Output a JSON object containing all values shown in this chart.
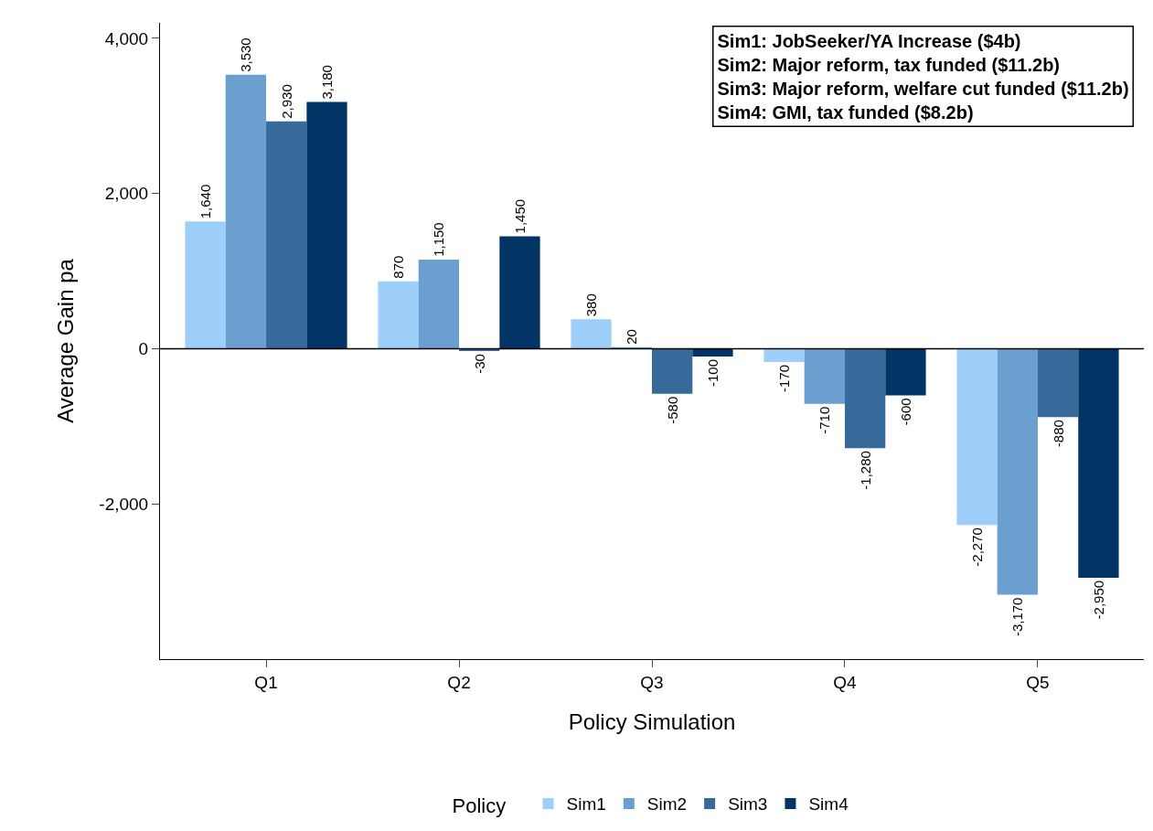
{
  "chart_data": {
    "type": "bar",
    "xlabel": "Policy Simulation",
    "ylabel": "Average Gain pa",
    "legend_title": "Policy",
    "categories": [
      "Q1",
      "Q2",
      "Q3",
      "Q4",
      "Q5"
    ],
    "series": [
      {
        "name": "Sim1",
        "color": "#9ecffb",
        "values": [
          1640,
          870,
          380,
          -170,
          -2270
        ],
        "value_labels": [
          "1,640",
          "870",
          "380",
          "-170",
          "-2,270"
        ]
      },
      {
        "name": "Sim2",
        "color": "#6a9fd0",
        "values": [
          3530,
          1150,
          20,
          -710,
          -3170
        ],
        "value_labels": [
          "3,530",
          "1,150",
          "20",
          "-710",
          "-3,170"
        ]
      },
      {
        "name": "Sim3",
        "color": "#356a9b",
        "values": [
          2930,
          -30,
          -580,
          -1280,
          -880
        ],
        "value_labels": [
          "2,930",
          "-30",
          "-580",
          "-1,280",
          "-880"
        ]
      },
      {
        "name": "Sim4",
        "color": "#033466",
        "values": [
          3180,
          1450,
          -100,
          -600,
          -2950
        ],
        "value_labels": [
          "3,180",
          "1,450",
          "-100",
          "-600",
          "-2,950"
        ]
      }
    ],
    "ylim": [
      -4000,
      4200
    ],
    "yticks": [
      {
        "value": -2000,
        "label": "-2,000"
      },
      {
        "value": 0,
        "label": "0"
      },
      {
        "value": 2000,
        "label": "2,000"
      },
      {
        "value": 4000,
        "label": "4,000"
      }
    ],
    "grid": false,
    "legend": "bottom",
    "ref_lines": [
      {
        "axis": "y",
        "value": 0,
        "color": "#000000"
      }
    ],
    "annotations": [
      "Sim1: JobSeeker/YA Increase ($4b)",
      "Sim2: Major reform, tax funded ($11.2b)",
      "Sim3: Major reform, welfare cut funded ($11.2b)",
      "Sim4: GMI, tax funded ($8.2b)"
    ]
  }
}
